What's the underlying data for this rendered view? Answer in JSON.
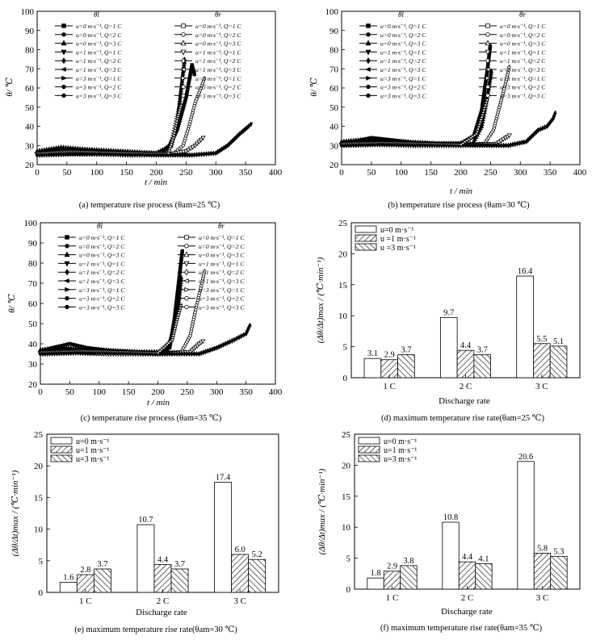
{
  "patterns": {
    "hatch_colors": {
      "white": "#ffffff",
      "line": "#000000"
    }
  },
  "chart_data": [
    {
      "type": "line",
      "panel": "a",
      "caption": "(a) temperature rise process (θam=25 ℃)",
      "xlabel": "t / min",
      "ylabel": "θ/ ℃",
      "xlim": [
        0,
        400
      ],
      "ylim": [
        20,
        100
      ],
      "xticks": [
        "0",
        "50",
        "100",
        "150",
        "200",
        "250",
        "300",
        "350",
        "400"
      ],
      "yticks": [
        "20",
        "30",
        "40",
        "50",
        "60",
        "70",
        "80",
        "90",
        "100"
      ],
      "legend_title_left": "θl",
      "legend_title_right": "θr",
      "legend_left": [
        "u=0 m·s⁻¹, Q=1 C",
        "u=0 m·s⁻¹, Q=2 C",
        "u=0 m·s⁻¹, Q=3 C",
        "u=1 m·s⁻¹, Q=1 C",
        "u=1 m·s⁻¹, Q=2 C",
        "u=1 m·s⁻¹, Q=3 C",
        "u=3 m·s⁻¹, Q=1 C",
        "u=3 m·s⁻¹, Q=2 C",
        "u=3 m·s⁻¹, Q=3 C"
      ],
      "legend_right": [
        "u=0 m·s⁻¹, Q=1 C",
        "u=0 m·s⁻¹, Q=2 C",
        "u=0 m·s⁻¹, Q=3 C",
        "u=1 m·s⁻¹, Q=1 C",
        "u=1 m·s⁻¹, Q=2 C",
        "u=1 m·s⁻¹, Q=3 C",
        "u=3 m·s⁻¹, Q=1 C",
        "u=3 m·s⁻¹, Q=2 C",
        "u=3 m·s⁻¹, Q=3 C"
      ],
      "curves": [
        {
          "x": [
            0,
            20,
            40,
            60,
            80,
            100,
            140,
            180,
            210,
            222,
            235,
            250,
            260,
            265
          ],
          "y": [
            26,
            27,
            28,
            28,
            27.5,
            27,
            26.5,
            26,
            26,
            30,
            38,
            55,
            72,
            66
          ]
        },
        {
          "x": [
            0,
            40,
            80,
            120,
            160,
            200,
            230,
            245,
            255,
            265,
            275,
            282
          ],
          "y": [
            25,
            26,
            26.5,
            26,
            25.5,
            25.5,
            26,
            30,
            40,
            52,
            60,
            66
          ]
        },
        {
          "x": [
            0,
            40,
            80,
            140,
            200,
            225,
            235,
            242,
            248
          ],
          "y": [
            27,
            29,
            28,
            27,
            26,
            30,
            42,
            60,
            76
          ]
        },
        {
          "x": [
            0,
            50,
            100,
            160,
            220,
            250,
            265,
            275,
            282
          ],
          "y": [
            25.5,
            26,
            25.5,
            25,
            25.5,
            27,
            30,
            33,
            35
          ]
        },
        {
          "x": [
            0,
            60,
            120,
            200,
            260,
            300,
            320,
            340,
            355,
            362
          ],
          "y": [
            25,
            25.5,
            25.5,
            25,
            25,
            26,
            30,
            36,
            40,
            42
          ]
        },
        {
          "x": [
            0,
            50,
            100,
            180,
            220,
            228,
            235,
            242
          ],
          "y": [
            26,
            27,
            26.5,
            26,
            26,
            34,
            44,
            52
          ]
        }
      ]
    },
    {
      "type": "line",
      "panel": "b",
      "caption": "(b) temperature rise process (θam=30 ℃)",
      "xlabel": "t / min",
      "ylabel": "θ/ ℃",
      "xlim": [
        0,
        400
      ],
      "ylim": [
        20,
        100
      ],
      "xticks": [
        "0",
        "50",
        "100",
        "150",
        "200",
        "250",
        "300",
        "350",
        "400"
      ],
      "yticks": [
        "20",
        "30",
        "40",
        "50",
        "60",
        "70",
        "80",
        "90",
        "100"
      ],
      "legend_title_left": "θl",
      "legend_title_right": "θr",
      "legend_left": [
        "u=0 m·s⁻¹, Q=1 C",
        "u=0 m·s⁻¹, Q=2 C",
        "u=0 m·s⁻¹, Q=3 C",
        "u=1 m·s⁻¹, Q=1 C",
        "u=1 m·s⁻¹, Q=2 C",
        "u=1 m·s⁻¹, Q=3 C",
        "u=3 m·s⁻¹, Q=1 C",
        "u=3 m·s⁻¹, Q=2 C",
        "u=3 m·s⁻¹, Q=3 C"
      ],
      "legend_right": [
        "u=0 m·s⁻¹, Q=1 C",
        "u=0 m·s⁻¹, Q=2 C",
        "u=0 m·s⁻¹, Q=3 C",
        "u=1 m·s⁻¹, Q=1 C",
        "u=1 m·s⁻¹, Q=2 C",
        "u=1 m·s⁻¹, Q=3 C",
        "u=3 m·s⁻¹, Q=1 C",
        "u=3 m·s⁻¹, Q=2 C",
        "u=3 m·s⁻¹, Q=3 C"
      ],
      "curves": [
        {
          "x": [
            0,
            20,
            50,
            80,
            120,
            160,
            200,
            222,
            235,
            245,
            250
          ],
          "y": [
            31,
            32,
            34,
            33,
            31.5,
            31,
            31,
            35,
            48,
            70,
            83
          ]
        },
        {
          "x": [
            0,
            40,
            80,
            140,
            200,
            240,
            255,
            265,
            275,
            282
          ],
          "y": [
            30,
            31,
            31,
            30.5,
            30.5,
            31,
            38,
            50,
            62,
            72
          ]
        },
        {
          "x": [
            0,
            40,
            100,
            160,
            220,
            235,
            245,
            252
          ],
          "y": [
            32,
            33,
            32,
            31,
            31,
            40,
            56,
            70
          ]
        },
        {
          "x": [
            0,
            60,
            120,
            200,
            260,
            275,
            285
          ],
          "y": [
            30,
            30.5,
            30,
            30,
            31,
            34,
            36
          ]
        },
        {
          "x": [
            0,
            60,
            140,
            220,
            280,
            310,
            330,
            345,
            355,
            360
          ],
          "y": [
            30,
            30.5,
            30.5,
            30,
            30,
            32,
            38,
            40,
            44,
            48
          ]
        },
        {
          "x": [
            0,
            60,
            140,
            200,
            226,
            236,
            245
          ],
          "y": [
            31,
            31.5,
            31,
            30.5,
            36,
            46,
            55
          ]
        }
      ]
    },
    {
      "type": "line",
      "panel": "c",
      "caption": "(c) temperature rise process (θam=35 ℃)",
      "xlabel": "t / min",
      "ylabel": "θ/ ℃",
      "xlim": [
        0,
        400
      ],
      "ylim": [
        20,
        100
      ],
      "xticks": [
        "0",
        "50",
        "100",
        "150",
        "200",
        "250",
        "300",
        "350",
        "400"
      ],
      "yticks": [
        "20",
        "30",
        "40",
        "50",
        "60",
        "70",
        "80",
        "90",
        "100"
      ],
      "legend_title_left": "θl",
      "legend_title_right": "θr",
      "legend_left": [
        "u=0 m·s⁻¹, Q=1 C",
        "u=0 m·s⁻¹, Q=2 C",
        "u=0 m·s⁻¹, Q=3 C",
        "u=1 m·s⁻¹, Q=1 C",
        "u=1 m·s⁻¹, Q=2 C",
        "u=1 m·s⁻¹, Q=3 C",
        "u=3 m·s⁻¹, Q=1 C",
        "u=3 m·s⁻¹, Q=2 C",
        "u=3 m·s⁻¹, Q=3 C"
      ],
      "legend_right": [
        "u=0 m·s⁻¹, Q=1 C",
        "u=0 m·s⁻¹, Q=2 C",
        "u=0 m·s⁻¹, Q=3 C",
        "u=1 m·s⁻¹, Q=1 C",
        "u=1 m·s⁻¹, Q=2 C",
        "u=1 m·s⁻¹, Q=3 C",
        "u=3 m·s⁻¹, Q=1 C",
        "u=3 m·s⁻¹, Q=2 C",
        "u=3 m·s⁻¹, Q=3 C"
      ],
      "curves": [
        {
          "x": [
            0,
            20,
            50,
            80,
            120,
            160,
            200,
            220,
            228,
            236,
            242
          ],
          "y": [
            36,
            38,
            40,
            38,
            36.5,
            36,
            35.5,
            38,
            52,
            72,
            87
          ]
        },
        {
          "x": [
            0,
            40,
            80,
            140,
            200,
            240,
            255,
            265,
            275,
            280
          ],
          "y": [
            35,
            36,
            36,
            35.5,
            35.5,
            36,
            44,
            58,
            70,
            77
          ]
        },
        {
          "x": [
            0,
            40,
            100,
            160,
            215,
            225,
            235,
            240
          ],
          "y": [
            37,
            38,
            37,
            36,
            36,
            46,
            60,
            74
          ]
        },
        {
          "x": [
            0,
            60,
            120,
            200,
            255,
            270,
            280
          ],
          "y": [
            35,
            35.5,
            35,
            35,
            36,
            40,
            42
          ]
        },
        {
          "x": [
            0,
            60,
            140,
            220,
            270,
            300,
            330,
            350,
            358
          ],
          "y": [
            35,
            35.5,
            35.5,
            35,
            35,
            38,
            42,
            45,
            50
          ]
        },
        {
          "x": [
            0,
            60,
            140,
            200,
            224,
            232,
            240
          ],
          "y": [
            36,
            36.5,
            36,
            35.5,
            42,
            52,
            60
          ]
        }
      ]
    },
    {
      "type": "bar",
      "panel": "d",
      "caption": "(d) maximum temperature rise rate(θam=25 ℃)",
      "xlabel": "Discharge rate",
      "ylabel": "(Δθ/Δt)max / (℃·min⁻¹)",
      "ylim": [
        0,
        25
      ],
      "yticks": [
        "0",
        "5",
        "10",
        "15",
        "20",
        "25"
      ],
      "categories": [
        "1 C",
        "2 C",
        "3 C"
      ],
      "series": [
        {
          "name": "u=0 m·s⁻¹",
          "values": [
            3.1,
            9.7,
            16.4
          ],
          "labels": [
            "3.1",
            "9.7",
            "16.4"
          ]
        },
        {
          "name": "u =1 m·s⁻¹",
          "values": [
            2.9,
            4.4,
            5.5
          ],
          "labels": [
            "2.9",
            "4.4",
            "5.5"
          ]
        },
        {
          "name": "u =3 m·s⁻¹",
          "values": [
            3.7,
            3.7,
            5.1
          ],
          "labels": [
            "3.7",
            "3.7",
            "5.1"
          ]
        }
      ],
      "legend": "top-left"
    },
    {
      "type": "bar",
      "panel": "e",
      "caption": "(e) maximum temperature rise rate(θam=30 ℃)",
      "xlabel": "Discharge rate",
      "ylabel": "(Δθ/Δt)max / (℃·min⁻¹)",
      "ylim": [
        0,
        25
      ],
      "yticks": [
        "0",
        "5",
        "10",
        "15",
        "20",
        "25"
      ],
      "categories": [
        "1 C",
        "2 C",
        "3 C"
      ],
      "series": [
        {
          "name": "u=0 m·s⁻¹",
          "values": [
            1.6,
            10.7,
            17.4
          ],
          "labels": [
            "1.6",
            "10.7",
            "17.4"
          ]
        },
        {
          "name": "u=1 m·s⁻¹",
          "values": [
            2.8,
            4.4,
            6.0
          ],
          "labels": [
            "2.8",
            "4.4",
            "6.0"
          ]
        },
        {
          "name": "u=3 m·s⁻¹",
          "values": [
            3.7,
            3.7,
            5.2
          ],
          "labels": [
            "3.7",
            "3.7",
            "5.2"
          ]
        }
      ],
      "legend": "top-left"
    },
    {
      "type": "bar",
      "panel": "f",
      "caption": "(f) maximum temperature rise rate(θam=35 ℃)",
      "xlabel": "Discharge rate",
      "ylabel": "(Δθ/Δt)max / (℃·min⁻¹)",
      "ylim": [
        0,
        25
      ],
      "yticks": [
        "0",
        "5",
        "10",
        "15",
        "20",
        "25"
      ],
      "categories": [
        "1 C",
        "2 C",
        "3 C"
      ],
      "series": [
        {
          "name": "u=0 m·s⁻¹",
          "values": [
            1.8,
            10.8,
            20.6
          ],
          "labels": [
            "1.8",
            "10.8",
            "20.6"
          ]
        },
        {
          "name": "u=1 m·s⁻¹",
          "values": [
            2.9,
            4.4,
            5.8
          ],
          "labels": [
            "2.9",
            "4.4",
            "5.8"
          ]
        },
        {
          "name": "u=3 m·s⁻¹",
          "values": [
            3.8,
            4.1,
            5.3
          ],
          "labels": [
            "3.8",
            "4.1",
            "5.3"
          ]
        }
      ],
      "legend": "top-left"
    }
  ]
}
